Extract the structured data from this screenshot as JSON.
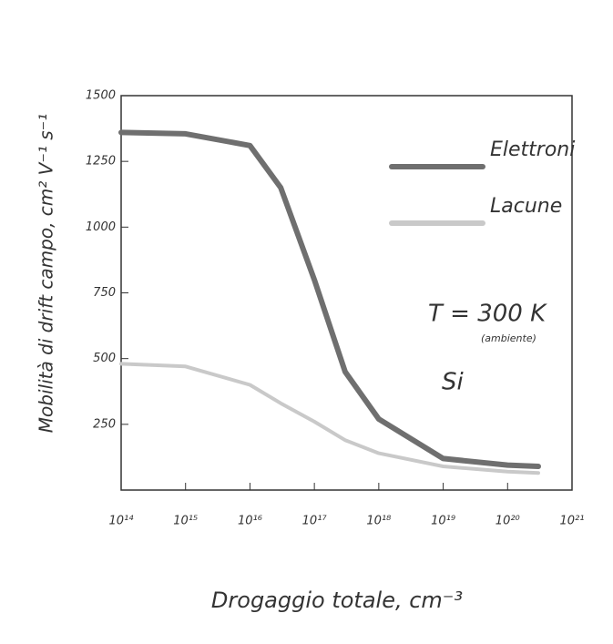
{
  "chart_data": {
    "type": "line",
    "x": [
      100000000000000.0,
      1000000000000000.0,
      1e+16,
      3e+16,
      1e+17,
      3e+17,
      1e+18,
      1e+19,
      1e+20,
      3e+20
    ],
    "series": [
      {
        "name": "Elettroni",
        "color": "#6f6f6f",
        "values": [
          1360,
          1355,
          1310,
          1150,
          800,
          450,
          270,
          120,
          95,
          90
        ]
      },
      {
        "name": "Lacune",
        "color": "#c9c9c9",
        "values": [
          480,
          470,
          400,
          330,
          260,
          190,
          140,
          90,
          70,
          65
        ]
      }
    ],
    "xlog": true,
    "xlim": [
      100000000000000.0,
      1e+21
    ],
    "xticks": [
      {
        "value": 100000000000000.0,
        "label": "10¹⁴"
      },
      {
        "value": 1000000000000000.0,
        "label": "10¹⁵"
      },
      {
        "value": 1e+16,
        "label": "10¹⁶"
      },
      {
        "value": 1e+17,
        "label": "10¹⁷"
      },
      {
        "value": 1e+18,
        "label": "10¹⁸"
      },
      {
        "value": 1e+19,
        "label": "10¹⁹"
      },
      {
        "value": 1e+20,
        "label": "10²⁰"
      },
      {
        "value": 1e+21,
        "label": "10²¹"
      }
    ],
    "ylim": [
      0,
      1500
    ],
    "yticks": [
      250,
      500,
      750,
      1000,
      1250,
      1500
    ],
    "xlabel": "Drogaggio totale, cm⁻³",
    "ylabel": "Mobilità di drift campo, cm² V⁻¹ s⁻¹",
    "annotations": [
      "T = 300 K",
      "(ambiente)",
      "Si"
    ],
    "grid": false
  }
}
